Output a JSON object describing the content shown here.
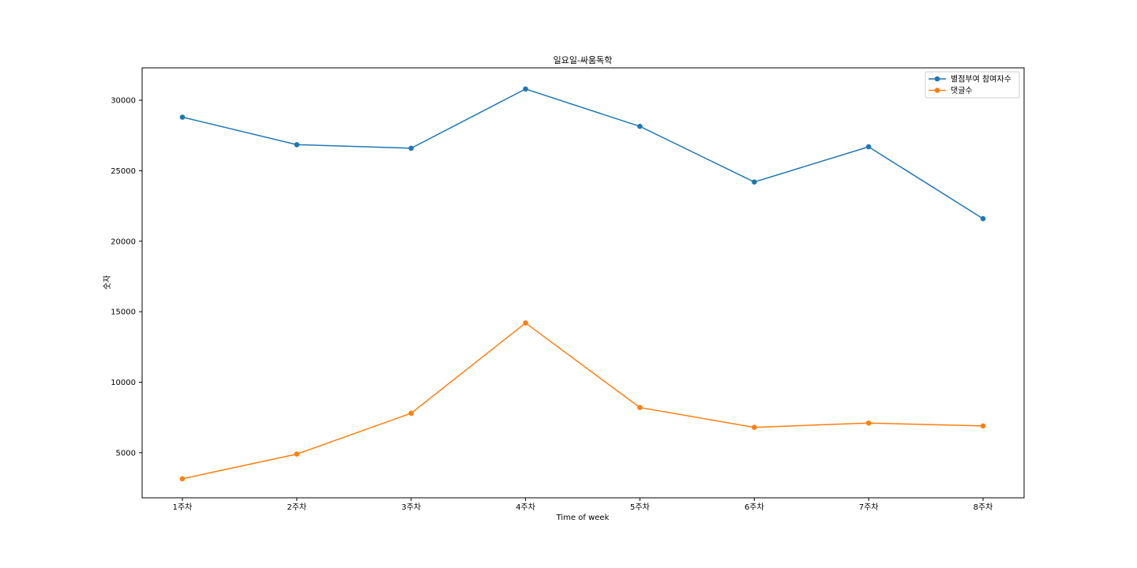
{
  "chart_data": {
    "type": "line",
    "title": "일요일-싸움독학",
    "xlabel": "Time of week",
    "ylabel": "숫자",
    "categories": [
      "1주차",
      "2주차",
      "3주차",
      "4주차",
      "5주차",
      "6주차",
      "7주차",
      "8주차"
    ],
    "ylim": [
      1800,
      32300
    ],
    "yticks": [
      5000,
      10000,
      15000,
      20000,
      25000,
      30000
    ],
    "grid": false,
    "legend_position": "top-right",
    "series": [
      {
        "name": "별점부여 참여자수",
        "color": "#1f77b4",
        "values": [
          28800,
          26850,
          26600,
          30800,
          28150,
          24200,
          26700,
          21600
        ]
      },
      {
        "name": "댓글수",
        "color": "#ff7f0e",
        "values": [
          3150,
          4900,
          7800,
          14200,
          8200,
          6800,
          7100,
          6900
        ]
      }
    ]
  }
}
